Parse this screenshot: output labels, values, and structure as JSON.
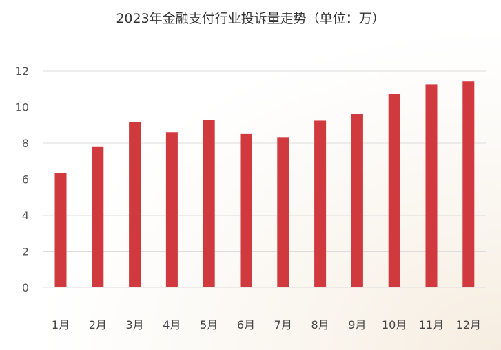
{
  "chart_data": {
    "type": "bar",
    "title": "2023年金融支付行业投诉量走势（单位：万）",
    "categories": [
      "1月",
      "2月",
      "3月",
      "4月",
      "5月",
      "6月",
      "7月",
      "8月",
      "9月",
      "10月",
      "11月",
      "12月"
    ],
    "series": [
      {
        "values": [
          6.35,
          7.78,
          9.18,
          8.6,
          9.28,
          8.5,
          8.33,
          9.24,
          9.6,
          10.72,
          11.26,
          11.42
        ]
      }
    ],
    "yticks": [
      "0",
      "2",
      "4",
      "6",
      "8",
      "10",
      "12"
    ],
    "ylim": [
      0,
      12
    ],
    "xlabel": "",
    "ylabel": "",
    "grid": true,
    "legend": "none",
    "bar_color": "#d0393e",
    "grid_color": "#dcdcdc"
  }
}
